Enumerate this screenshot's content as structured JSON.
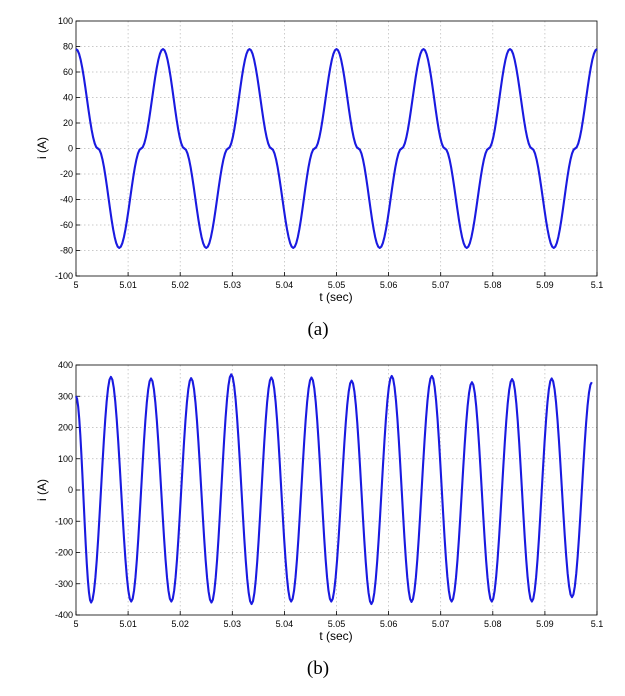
{
  "chart_data": [
    {
      "type": "line",
      "caption": "(a)",
      "xlabel": "t (sec)",
      "ylabel": "i (A)",
      "xlim": [
        5,
        5.1
      ],
      "ylim": [
        -100,
        100
      ],
      "xticks": [
        "5",
        "5.01",
        "5.02",
        "5.03",
        "5.04",
        "5.05",
        "5.06",
        "5.07",
        "5.08",
        "5.09",
        "5.1"
      ],
      "yticks": [
        "-100",
        "-80",
        "-60",
        "-40",
        "-20",
        "0",
        "20",
        "40",
        "60",
        "80",
        "100"
      ],
      "grid": true,
      "color": "#1a1ae0",
      "series": [
        {
          "x": [
            5.0,
            5.0042,
            5.0083,
            5.0125,
            5.0167,
            5.0208,
            5.025,
            5.0292,
            5.0333,
            5.0375,
            5.0417,
            5.0458,
            5.05,
            5.0542,
            5.0583,
            5.0625,
            5.0667,
            5.0708,
            5.075,
            5.0792,
            5.0833,
            5.0875,
            5.0917,
            5.0958,
            5.1
          ],
          "y": [
            78,
            0,
            -78,
            0,
            78,
            0,
            -78,
            0,
            78,
            0,
            -78,
            0,
            78,
            0,
            -78,
            0,
            78,
            0,
            -78,
            0,
            78,
            0,
            -78,
            0,
            78
          ]
        }
      ]
    },
    {
      "type": "line",
      "caption": "(b)",
      "xlabel": "t (sec)",
      "ylabel": "i (A)",
      "xlim": [
        5,
        5.1
      ],
      "ylim": [
        -400,
        400
      ],
      "xticks": [
        "5",
        "5.01",
        "5.02",
        "5.03",
        "5.04",
        "5.05",
        "5.06",
        "5.07",
        "5.08",
        "5.09",
        "5.1"
      ],
      "yticks": [
        "-400",
        "-300",
        "-200",
        "-100",
        "0",
        "100",
        "200",
        "300",
        "400"
      ],
      "grid": true,
      "color": "#1a1ae0",
      "series": [
        {
          "x": [
            5.0,
            5.0029,
            5.0067,
            5.0106,
            5.0144,
            5.0183,
            5.0221,
            5.026,
            5.0298,
            5.0337,
            5.0375,
            5.0413,
            5.0452,
            5.049,
            5.0529,
            5.0567,
            5.0606,
            5.0644,
            5.0683,
            5.0721,
            5.076,
            5.0798,
            5.0837,
            5.0875,
            5.0913,
            5.0952,
            5.099
          ],
          "y": [
            300,
            -360,
            362,
            -357,
            357,
            -357,
            358,
            -360,
            370,
            -365,
            360,
            -357,
            360,
            -357,
            350,
            -365,
            365,
            -358,
            365,
            -357,
            345,
            -357,
            355,
            -357,
            357,
            -343,
            345
          ]
        }
      ]
    }
  ]
}
